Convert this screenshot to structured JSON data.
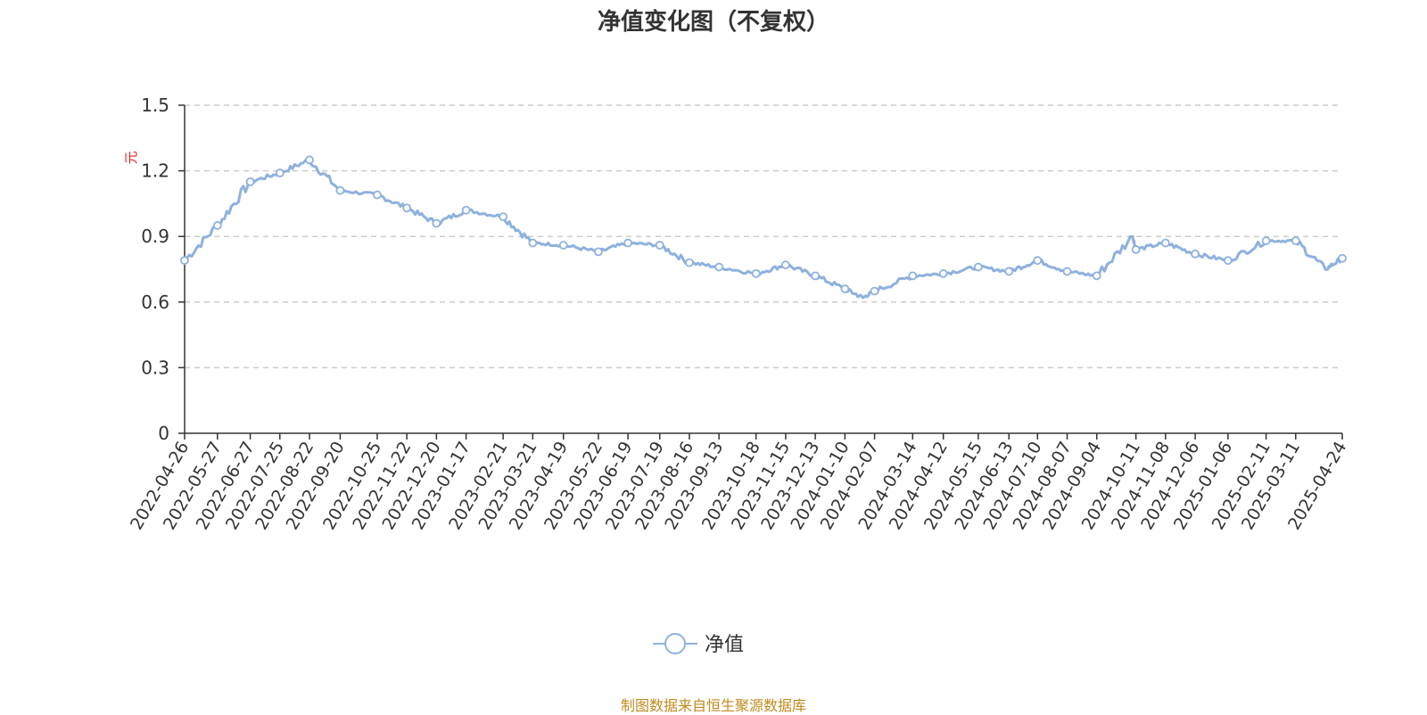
{
  "title": "净值变化图（不复权）",
  "source_note": "制图数据来自恒生聚源数据库",
  "colors": {
    "series": "#8eb1de",
    "grid": "#cccccc",
    "axis": "#333333",
    "unit": "#e02020",
    "source": "#c08a1e"
  },
  "chart_data": {
    "type": "line",
    "title": "净值变化图（不复权）",
    "ylabel": "元",
    "xlabel": "",
    "ylim": [
      0,
      1.5
    ],
    "yticks": [
      "0",
      "0.3",
      "0.6",
      "0.9",
      "1.2",
      "1.5"
    ],
    "grid": true,
    "legend_position": "bottom-center",
    "x_tick_labels": [
      "2022-04-26",
      "2022-05-27",
      "2022-06-27",
      "2022-07-25",
      "2022-08-22",
      "2022-09-20",
      "2022-10-25",
      "2022-11-22",
      "2022-12-20",
      "2023-01-17",
      "2023-02-21",
      "2023-03-21",
      "2023-04-19",
      "2023-05-22",
      "2023-06-19",
      "2023-07-19",
      "2023-08-16",
      "2023-09-13",
      "2023-10-18",
      "2023-11-15",
      "2023-12-13",
      "2024-01-10",
      "2024-02-07",
      "2024-03-14",
      "2024-04-12",
      "2024-05-15",
      "2024-06-13",
      "2024-07-10",
      "2024-08-07",
      "2024-09-04",
      "2024-10-11",
      "2024-11-08",
      "2024-12-06",
      "2025-01-06",
      "2025-02-11",
      "2025-03-11",
      "2025-04-24"
    ],
    "series": [
      {
        "name": "净值",
        "x": [
          "2022-04-26",
          "2022-05-27",
          "2022-06-27",
          "2022-07-25",
          "2022-08-22",
          "2022-09-20",
          "2022-10-25",
          "2022-11-22",
          "2022-12-20",
          "2023-01-17",
          "2023-02-21",
          "2023-03-21",
          "2023-04-19",
          "2023-05-22",
          "2023-06-19",
          "2023-07-19",
          "2023-08-16",
          "2023-09-13",
          "2023-10-18",
          "2023-11-15",
          "2023-12-13",
          "2024-01-10",
          "2024-02-07",
          "2024-03-14",
          "2024-04-12",
          "2024-05-15",
          "2024-06-13",
          "2024-07-10",
          "2024-08-07",
          "2024-09-04",
          "2024-10-11",
          "2024-11-08",
          "2024-12-06",
          "2025-01-06",
          "2025-02-11",
          "2025-03-11",
          "2025-04-24"
        ],
        "values": [
          0.79,
          0.95,
          1.15,
          1.19,
          1.25,
          1.11,
          1.09,
          1.03,
          0.96,
          1.02,
          0.99,
          0.87,
          0.86,
          0.83,
          0.87,
          0.86,
          0.78,
          0.76,
          0.73,
          0.77,
          0.72,
          0.66,
          0.65,
          0.72,
          0.73,
          0.76,
          0.74,
          0.79,
          0.74,
          0.72,
          0.84,
          0.87,
          0.82,
          0.79,
          0.88,
          0.88,
          0.8
        ],
        "extra_points": [
          {
            "x": "2024-01-27",
            "value": 0.62
          },
          {
            "x": "2024-10-08",
            "value": 0.9
          },
          {
            "x": "2025-04-08",
            "value": 0.75
          }
        ]
      }
    ]
  }
}
